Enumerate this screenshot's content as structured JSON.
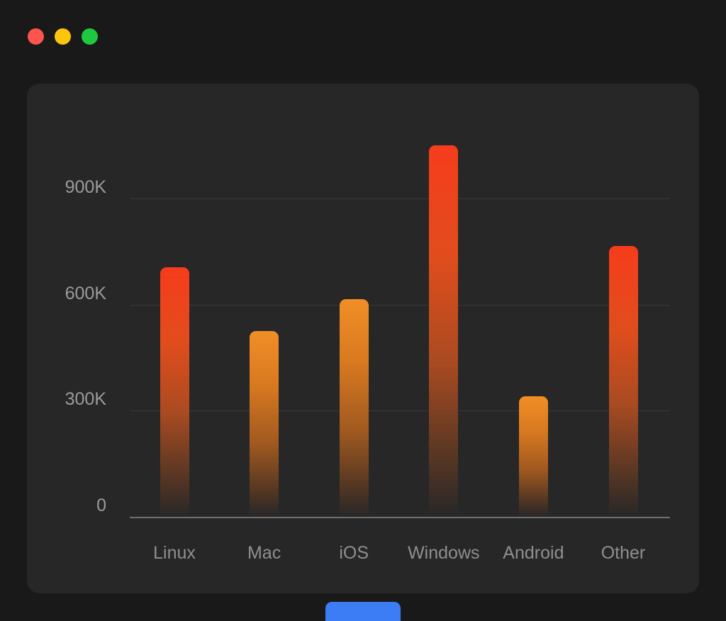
{
  "window": {
    "traffic_lights": [
      {
        "name": "close",
        "color": "#fd544c"
      },
      {
        "name": "minimize",
        "color": "#fcc60d"
      },
      {
        "name": "zoom",
        "color": "#1fc83e"
      }
    ]
  },
  "theme": {
    "page_bg": "#191919",
    "card_bg": "#272727",
    "gridline_color": "#3a3a3a",
    "axis_line_color": "#6f6f6f",
    "tick_label_color": "#9b9b9b",
    "category_label_color": "#8f8f8f",
    "bar_red_top": "#f63c1c",
    "bar_orange_top": "#f18e27",
    "accent_blue": "#3c7df6"
  },
  "chart_data": {
    "type": "bar",
    "title": "",
    "xlabel": "",
    "ylabel": "",
    "categories": [
      "Linux",
      "Mac",
      "iOS",
      "Windows",
      "Android",
      "Other"
    ],
    "values": [
      705000,
      525000,
      615000,
      1050000,
      340000,
      765000
    ],
    "bar_palette": [
      "red",
      "orange",
      "orange",
      "red",
      "orange",
      "red"
    ],
    "ylim": [
      0,
      1080000
    ],
    "yticks": [
      {
        "value": 0,
        "label": "0"
      },
      {
        "value": 300000,
        "label": "300K"
      },
      {
        "value": 600000,
        "label": "600K"
      },
      {
        "value": 900000,
        "label": "900K"
      }
    ],
    "grid": true,
    "legend": false
  }
}
